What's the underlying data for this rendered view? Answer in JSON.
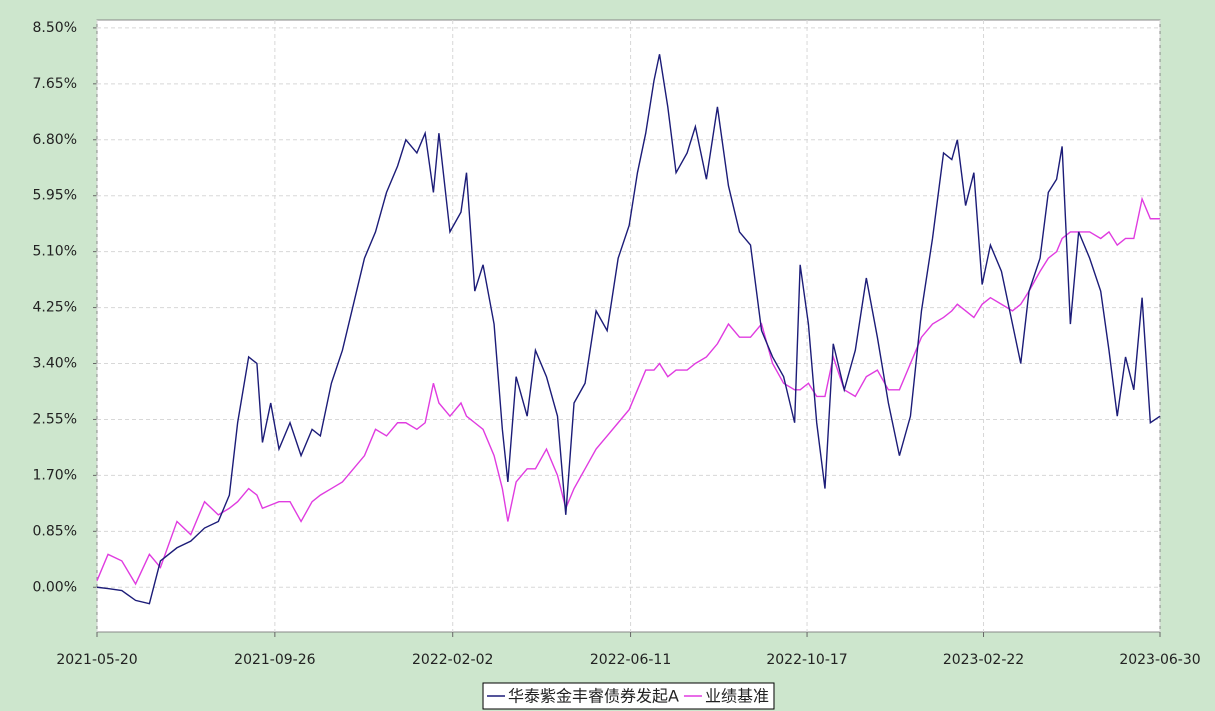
{
  "chart_data": {
    "type": "line",
    "x": [
      "2021-05-20",
      "2021-05-28",
      "2021-06-07",
      "2021-06-17",
      "2021-06-27",
      "2021-07-05",
      "2021-07-17",
      "2021-07-27",
      "2021-08-06",
      "2021-08-16",
      "2021-08-24",
      "2021-08-30",
      "2021-09-07",
      "2021-09-13",
      "2021-09-17",
      "2021-09-23",
      "2021-09-29",
      "2021-10-07",
      "2021-10-15",
      "2021-10-23",
      "2021-10-29",
      "2021-11-06",
      "2021-11-14",
      "2021-11-22",
      "2021-11-30",
      "2021-12-08",
      "2021-12-16",
      "2021-12-24",
      "2021-12-30",
      "2022-01-07",
      "2022-01-13",
      "2022-01-19",
      "2022-01-23",
      "2022-01-31",
      "2022-02-08",
      "2022-02-12",
      "2022-02-18",
      "2022-02-24",
      "2022-03-04",
      "2022-03-10",
      "2022-03-14",
      "2022-03-20",
      "2022-03-28",
      "2022-04-03",
      "2022-04-11",
      "2022-04-19",
      "2022-04-25",
      "2022-05-01",
      "2022-05-09",
      "2022-05-17",
      "2022-05-25",
      "2022-06-02",
      "2022-06-10",
      "2022-06-16",
      "2022-06-22",
      "2022-06-28",
      "2022-07-02",
      "2022-07-08",
      "2022-07-14",
      "2022-07-22",
      "2022-07-28",
      "2022-08-05",
      "2022-08-13",
      "2022-08-21",
      "2022-08-29",
      "2022-09-06",
      "2022-09-14",
      "2022-09-22",
      "2022-09-30",
      "2022-10-08",
      "2022-10-12",
      "2022-10-18",
      "2022-10-24",
      "2022-10-30",
      "2022-11-05",
      "2022-11-13",
      "2022-11-21",
      "2022-11-29",
      "2022-12-07",
      "2022-12-15",
      "2022-12-23",
      "2022-12-31",
      "2023-01-08",
      "2023-01-16",
      "2023-01-24",
      "2023-01-30",
      "2023-02-03",
      "2023-02-09",
      "2023-02-15",
      "2023-02-21",
      "2023-02-27",
      "2023-03-07",
      "2023-03-15",
      "2023-03-21",
      "2023-03-27",
      "2023-04-04",
      "2023-04-10",
      "2023-04-16",
      "2023-04-20",
      "2023-04-26",
      "2023-05-02",
      "2023-05-10",
      "2023-05-18",
      "2023-05-24",
      "2023-05-30",
      "2023-06-05",
      "2023-06-11",
      "2023-06-17",
      "2023-06-23",
      "2023-06-30"
    ],
    "series": [
      {
        "name": "华泰紫金丰睿债券发起A",
        "color": "#1c1c78",
        "values": [
          0.0,
          -0.02,
          -0.05,
          -0.2,
          -0.25,
          0.4,
          0.6,
          0.7,
          0.9,
          1.0,
          1.4,
          2.5,
          3.5,
          3.4,
          2.2,
          2.8,
          2.1,
          2.5,
          2.0,
          2.4,
          2.3,
          3.1,
          3.6,
          4.3,
          5.0,
          5.4,
          6.0,
          6.4,
          6.8,
          6.6,
          6.9,
          6.0,
          6.9,
          5.4,
          5.7,
          6.3,
          4.5,
          4.9,
          4.0,
          2.4,
          1.6,
          3.2,
          2.6,
          3.6,
          3.2,
          2.6,
          1.1,
          2.8,
          3.1,
          4.2,
          3.9,
          5.0,
          5.5,
          6.3,
          6.9,
          7.7,
          8.1,
          7.3,
          6.3,
          6.6,
          7.0,
          6.2,
          7.3,
          6.1,
          5.4,
          5.2,
          3.9,
          3.5,
          3.2,
          2.5,
          4.9,
          4.0,
          2.5,
          1.5,
          3.7,
          3.0,
          3.6,
          4.7,
          3.8,
          2.8,
          2.0,
          2.6,
          4.2,
          5.3,
          6.6,
          6.5,
          6.8,
          5.8,
          6.3,
          4.6,
          5.2,
          4.8,
          4.0,
          3.4,
          4.5,
          5.0,
          6.0,
          6.2,
          6.7,
          4.0,
          5.4,
          5.0,
          4.5,
          3.6,
          2.6,
          3.5,
          3.0,
          4.4,
          2.5,
          2.6
        ]
      },
      {
        "name": "业绩基准",
        "color": "#e03ce0",
        "values": [
          0.1,
          0.5,
          0.4,
          0.05,
          0.5,
          0.3,
          1.0,
          0.8,
          1.3,
          1.1,
          1.2,
          1.3,
          1.5,
          1.4,
          1.2,
          1.25,
          1.3,
          1.3,
          1.0,
          1.3,
          1.4,
          1.5,
          1.6,
          1.8,
          2.0,
          2.4,
          2.3,
          2.5,
          2.5,
          2.4,
          2.5,
          3.1,
          2.8,
          2.6,
          2.8,
          2.6,
          2.5,
          2.4,
          2.0,
          1.5,
          1.0,
          1.6,
          1.8,
          1.8,
          2.1,
          1.7,
          1.2,
          1.5,
          1.8,
          2.1,
          2.3,
          2.5,
          2.7,
          3.0,
          3.3,
          3.3,
          3.4,
          3.2,
          3.3,
          3.3,
          3.4,
          3.5,
          3.7,
          4.0,
          3.8,
          3.8,
          4.0,
          3.4,
          3.1,
          3.0,
          3.0,
          3.1,
          2.9,
          2.9,
          3.5,
          3.0,
          2.9,
          3.2,
          3.3,
          3.0,
          3.0,
          3.4,
          3.8,
          4.0,
          4.1,
          4.2,
          4.3,
          4.2,
          4.1,
          4.3,
          4.4,
          4.3,
          4.2,
          4.3,
          4.5,
          4.8,
          5.0,
          5.1,
          5.3,
          5.4,
          5.4,
          5.4,
          5.3,
          5.4,
          5.2,
          5.3,
          5.3,
          5.9,
          5.6,
          5.6
        ]
      }
    ],
    "xlim": [
      "2021-05-20",
      "2023-06-30"
    ],
    "xticks": [
      "2021-05-20",
      "2021-09-26",
      "2022-02-02",
      "2022-06-11",
      "2022-10-17",
      "2023-02-22",
      "2023-06-30"
    ],
    "ylim": [
      -0.68,
      8.62
    ],
    "yticks": [
      {
        "value": 0,
        "label": "0.00%"
      },
      {
        "value": 0.85,
        "label": "0.85%"
      },
      {
        "value": 1.7,
        "label": "1.70%"
      },
      {
        "value": 2.55,
        "label": "2.55%"
      },
      {
        "value": 3.4,
        "label": "3.40%"
      },
      {
        "value": 4.25,
        "label": "4.25%"
      },
      {
        "value": 5.1,
        "label": "5.10%"
      },
      {
        "value": 5.95,
        "label": "5.95%"
      },
      {
        "value": 6.8,
        "label": "6.80%"
      },
      {
        "value": 7.65,
        "label": "7.65%"
      },
      {
        "value": 8.5,
        "label": "8.50%"
      }
    ],
    "grid": true,
    "legend_position": "bottom"
  }
}
